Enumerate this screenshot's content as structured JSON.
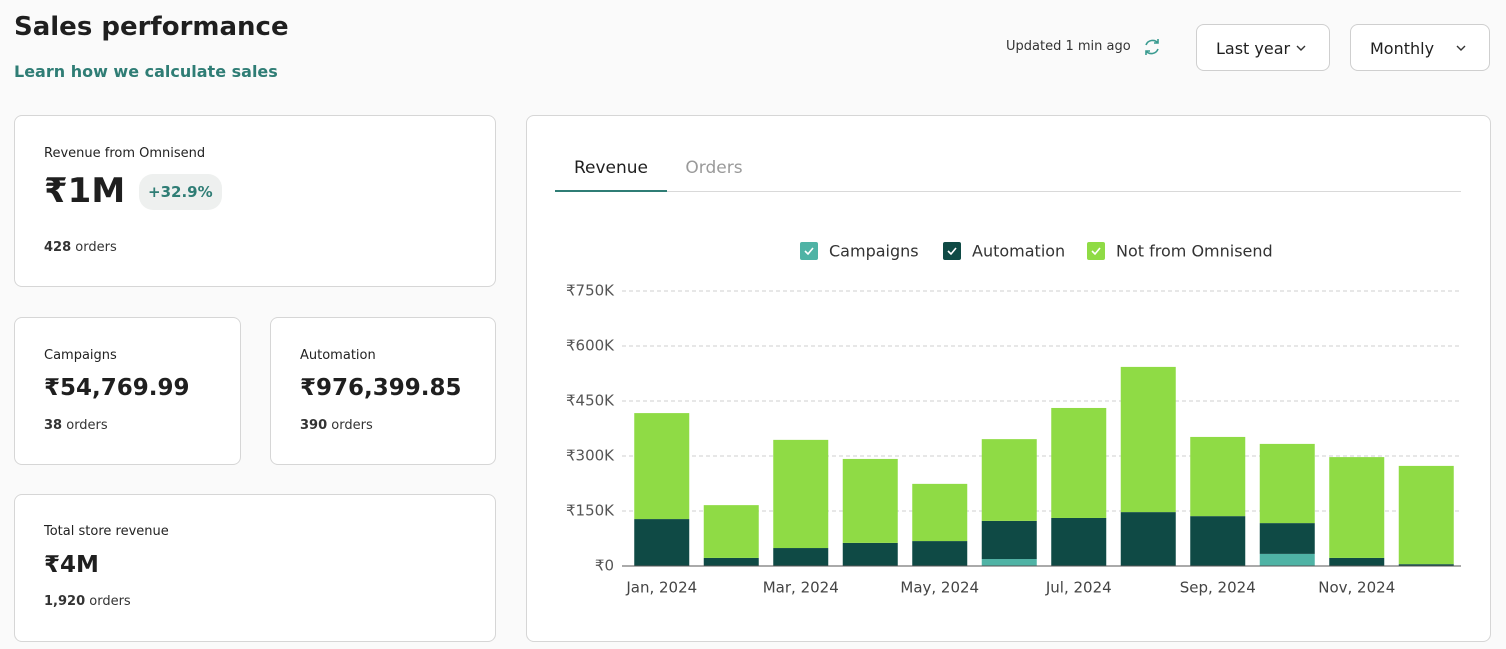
{
  "header": {
    "title": "Sales performance",
    "link": "Learn how we calculate sales",
    "updated": "Updated 1 min ago",
    "filters": [
      "Last year",
      "Monthly"
    ]
  },
  "cards": [
    {
      "label": "Revenue from Omnisend",
      "value": "₹1M",
      "change": "+32.9%",
      "orders": "428",
      "orders_unit": "orders"
    },
    {
      "label": "Campaigns",
      "value": "₹54,769.99",
      "orders": "38",
      "orders_unit": "orders"
    },
    {
      "label": "Automation",
      "value": "₹976,399.85",
      "orders": "390",
      "orders_unit": "orders"
    },
    {
      "label": "Total store revenue",
      "value": "₹4M",
      "orders": "1,920",
      "orders_unit": "orders"
    }
  ],
  "tabs": [
    "Revenue",
    "Orders"
  ],
  "chart_data": {
    "type": "bar",
    "stacked": true,
    "legend": "top",
    "grid": true,
    "categories": [
      "Jan, 2024",
      null,
      "Mar, 2024",
      null,
      "May, 2024",
      null,
      "Jul, 2024",
      null,
      "Sep, 2024",
      null,
      "Nov, 2024",
      null
    ],
    "series": [
      {
        "name": "Campaigns",
        "color": "#4fb3a5",
        "values": [
          0,
          0,
          0,
          0,
          0,
          19000,
          0,
          0,
          0,
          33000,
          0,
          0
        ]
      },
      {
        "name": "Automation",
        "color": "#0f4a45",
        "values": [
          128000,
          22000,
          49000,
          63000,
          68000,
          104000,
          131000,
          147000,
          136000,
          84000,
          22000,
          5000
        ]
      },
      {
        "name": "Not from Omnisend",
        "color": "#8fdb45",
        "values": [
          289000,
          144000,
          295000,
          229000,
          156000,
          223000,
          300000,
          396000,
          216000,
          216000,
          275000,
          268000
        ]
      }
    ],
    "ylim": [
      0,
      750000
    ],
    "yticks": [
      {
        "value": 0,
        "label": "₹0"
      },
      {
        "value": 150000,
        "label": "₹150K"
      },
      {
        "value": 300000,
        "label": "₹300K"
      },
      {
        "value": 450000,
        "label": "₹450K"
      },
      {
        "value": 600000,
        "label": "₹600K"
      },
      {
        "value": 750000,
        "label": "₹750K"
      }
    ]
  }
}
